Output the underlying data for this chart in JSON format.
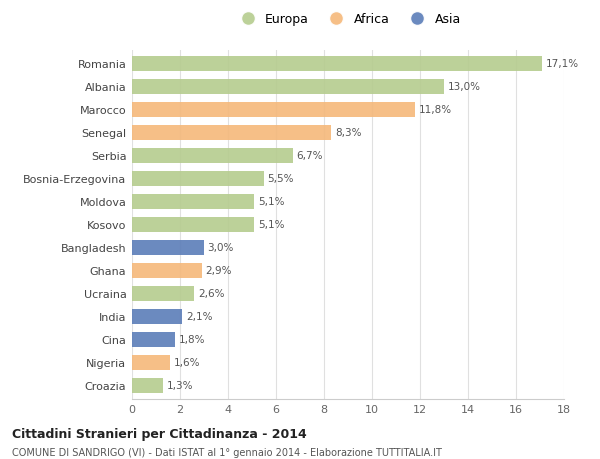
{
  "categories": [
    "Romania",
    "Albania",
    "Marocco",
    "Senegal",
    "Serbia",
    "Bosnia-Erzegovina",
    "Moldova",
    "Kosovo",
    "Bangladesh",
    "Ghana",
    "Ucraina",
    "India",
    "Cina",
    "Nigeria",
    "Croazia"
  ],
  "values": [
    17.1,
    13.0,
    11.8,
    8.3,
    6.7,
    5.5,
    5.1,
    5.1,
    3.0,
    2.9,
    2.6,
    2.1,
    1.8,
    1.6,
    1.3
  ],
  "continents": [
    "Europa",
    "Europa",
    "Africa",
    "Africa",
    "Europa",
    "Europa",
    "Europa",
    "Europa",
    "Asia",
    "Africa",
    "Europa",
    "Asia",
    "Asia",
    "Africa",
    "Europa"
  ],
  "labels": [
    "17,1%",
    "13,0%",
    "11,8%",
    "8,3%",
    "6,7%",
    "5,5%",
    "5,1%",
    "5,1%",
    "3,0%",
    "2,9%",
    "2,6%",
    "2,1%",
    "1,8%",
    "1,6%",
    "1,3%"
  ],
  "colors": {
    "Europa": "#b5cc8e",
    "Africa": "#f5b87a",
    "Asia": "#5b7db8"
  },
  "bg_color": "#ffffff",
  "grid_color": "#e0e0e0",
  "title": "Cittadini Stranieri per Cittadinanza - 2014",
  "subtitle": "COMUNE DI SANDRIGO (VI) - Dati ISTAT al 1° gennaio 2014 - Elaborazione TUTTITALIA.IT",
  "xlim": [
    0,
    18
  ],
  "xticks": [
    0,
    2,
    4,
    6,
    8,
    10,
    12,
    14,
    16,
    18
  ],
  "bar_height": 0.62,
  "figsize": [
    6.0,
    4.6
  ],
  "dpi": 100
}
